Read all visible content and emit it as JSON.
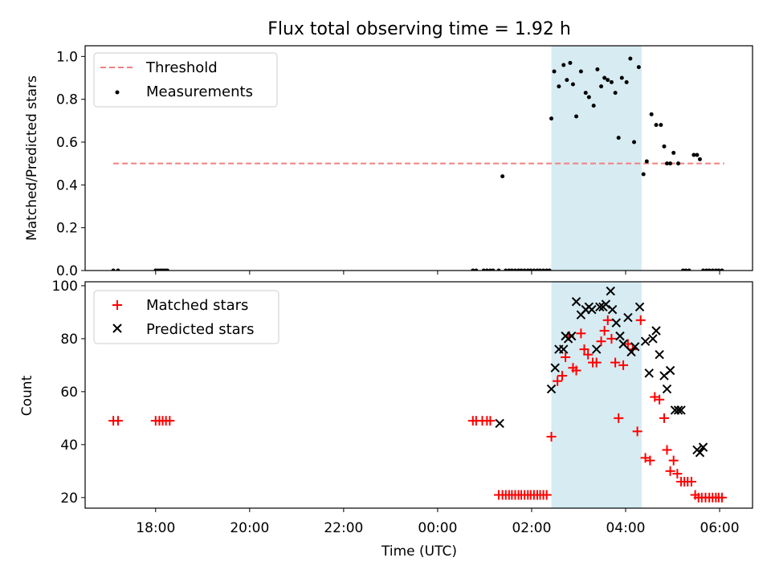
{
  "title": "Flux total observing time = 1.92 h",
  "colors": {
    "threshold": "#f08080",
    "measurement": "#000000",
    "matched": "#ff0000",
    "predicted": "#000000",
    "shade": "#add8e6"
  },
  "chart_data": [
    {
      "type": "scatter",
      "ylabel": "Matched/Predicted stars",
      "ylim": [
        0,
        1.05
      ],
      "yticks": [
        0,
        0.2,
        0.4,
        0.6,
        0.8,
        1.0
      ],
      "ytick_labels": [
        "0.0",
        "0.2",
        "0.4",
        "0.6",
        "0.8",
        "1.0"
      ],
      "shaded_span_x": [
        2.42,
        4.34
      ],
      "legend": {
        "placement": "top-left",
        "entries": [
          "Threshold",
          "Measurements"
        ]
      },
      "series": [
        {
          "name": "Threshold",
          "style": "dashed-line",
          "x": [
            -6.9,
            6.1
          ],
          "y": [
            0.5,
            0.5
          ]
        },
        {
          "name": "Measurements",
          "style": "dot",
          "x": [
            -6.9,
            -6.8,
            -6.0,
            -5.95,
            -5.9,
            -5.85,
            -5.8,
            -5.75,
            0.75,
            0.82,
            0.98,
            1.05,
            1.12,
            1.18,
            1.3,
            1.38,
            1.45,
            1.52,
            1.58,
            1.65,
            1.72,
            1.78,
            1.85,
            1.92,
            1.98,
            2.05,
            2.12,
            2.18,
            2.25,
            2.32,
            2.38,
            2.42,
            2.48,
            2.58,
            2.68,
            2.75,
            2.82,
            2.88,
            2.95,
            3.05,
            3.15,
            3.22,
            3.32,
            3.4,
            3.48,
            3.55,
            3.62,
            3.7,
            3.78,
            3.85,
            3.92,
            4.02,
            4.1,
            4.18,
            4.28,
            4.38,
            4.45,
            4.55,
            4.65,
            4.75,
            4.82,
            4.88,
            4.95,
            5.02,
            5.12,
            5.22,
            5.28,
            5.35,
            5.45,
            5.52,
            5.58,
            5.65,
            5.72,
            5.78,
            5.85,
            5.92,
            5.98,
            6.05
          ],
          "y": [
            0.0,
            0.0,
            0.0,
            0.0,
            0.0,
            0.0,
            0.0,
            0.0,
            0.0,
            0.0,
            0.0,
            0.0,
            0.0,
            0.0,
            0.0,
            0.44,
            0.0,
            0.0,
            0.0,
            0.0,
            0.0,
            0.0,
            0.0,
            0.0,
            0.0,
            0.0,
            0.0,
            0.0,
            0.0,
            0.0,
            0.0,
            0.71,
            0.93,
            0.86,
            0.96,
            0.89,
            0.97,
            0.87,
            0.72,
            0.93,
            0.83,
            0.81,
            0.77,
            0.94,
            0.86,
            0.9,
            0.89,
            0.88,
            0.83,
            0.62,
            0.9,
            0.88,
            0.99,
            0.6,
            0.95,
            0.45,
            0.51,
            0.73,
            0.68,
            0.68,
            0.58,
            0.5,
            0.5,
            0.55,
            0.5,
            0.0,
            0.0,
            0.0,
            0.54,
            0.54,
            0.52,
            0.0,
            0.0,
            0.0,
            0.0,
            0.0,
            0.0,
            0.0
          ]
        }
      ]
    },
    {
      "type": "scatter",
      "xlabel": "Time (UTC)",
      "ylabel": "Count",
      "xlim": [
        -7.5,
        6.7
      ],
      "ylim": [
        16,
        101.5
      ],
      "xticks": [
        -6,
        -4,
        -2,
        0,
        2,
        4,
        6
      ],
      "xtick_labels": [
        "18:00",
        "20:00",
        "22:00",
        "00:00",
        "02:00",
        "04:00",
        "06:00"
      ],
      "yticks": [
        20,
        40,
        60,
        80,
        100
      ],
      "ytick_labels": [
        "20",
        "40",
        "60",
        "80",
        "100"
      ],
      "shaded_span_x": [
        2.42,
        4.34
      ],
      "legend": {
        "placement": "top-left",
        "entries": [
          "Matched stars",
          "Predicted stars"
        ]
      },
      "series": [
        {
          "name": "Matched stars",
          "marker": "plus",
          "x": [
            -6.9,
            -6.8,
            -6.0,
            -5.92,
            -5.85,
            -5.78,
            -5.7,
            0.75,
            0.82,
            0.95,
            1.05,
            1.12,
            1.3,
            1.38,
            1.45,
            1.52,
            1.58,
            1.65,
            1.72,
            1.78,
            1.85,
            1.92,
            1.98,
            2.05,
            2.12,
            2.18,
            2.25,
            2.32,
            2.42,
            2.55,
            2.65,
            2.72,
            2.8,
            2.88,
            2.95,
            3.05,
            3.12,
            3.2,
            3.3,
            3.38,
            3.48,
            3.55,
            3.62,
            3.7,
            3.78,
            3.85,
            3.95,
            4.05,
            4.15,
            4.25,
            4.32,
            4.42,
            4.52,
            4.62,
            4.72,
            4.82,
            4.88,
            4.95,
            5.02,
            5.1,
            5.18,
            5.25,
            5.32,
            5.4,
            5.48,
            5.55,
            5.62,
            5.7,
            5.78,
            5.85,
            5.92,
            5.98,
            6.05
          ],
          "y": [
            49,
            49,
            49,
            49,
            49,
            49,
            49,
            49,
            49,
            49,
            49,
            49,
            21,
            21,
            21,
            21,
            21,
            21,
            21,
            21,
            21,
            21,
            21,
            21,
            21,
            21,
            21,
            21,
            43,
            64,
            66,
            73,
            81,
            69,
            68,
            82,
            76,
            74,
            71,
            71,
            79,
            83,
            87,
            80,
            71,
            50,
            70,
            78,
            76,
            45,
            87,
            35,
            34,
            58,
            57,
            50,
            38,
            30,
            34,
            29,
            26,
            26,
            26,
            26,
            21,
            20,
            20,
            20,
            20,
            20,
            20,
            20,
            20
          ]
        },
        {
          "name": "Predicted stars",
          "marker": "x",
          "x": [
            1.32,
            2.42,
            2.5,
            2.58,
            2.68,
            2.72,
            2.78,
            2.85,
            2.95,
            3.05,
            3.15,
            3.22,
            3.28,
            3.38,
            3.45,
            3.52,
            3.58,
            3.68,
            3.72,
            3.8,
            3.88,
            3.95,
            4.05,
            4.12,
            4.2,
            4.3,
            4.42,
            4.5,
            4.58,
            4.65,
            4.72,
            4.82,
            4.88,
            4.95,
            5.05,
            5.12,
            5.18,
            5.52,
            5.58,
            5.65
          ],
          "y": [
            48,
            61,
            69,
            76,
            76,
            81,
            80,
            81,
            94,
            89,
            91,
            92,
            91,
            76,
            92,
            92,
            93,
            98,
            91,
            86,
            81,
            78,
            88,
            75,
            77,
            92,
            79,
            67,
            80,
            83,
            74,
            66,
            61,
            68,
            53,
            53,
            53,
            38,
            37,
            39
          ]
        }
      ]
    }
  ]
}
